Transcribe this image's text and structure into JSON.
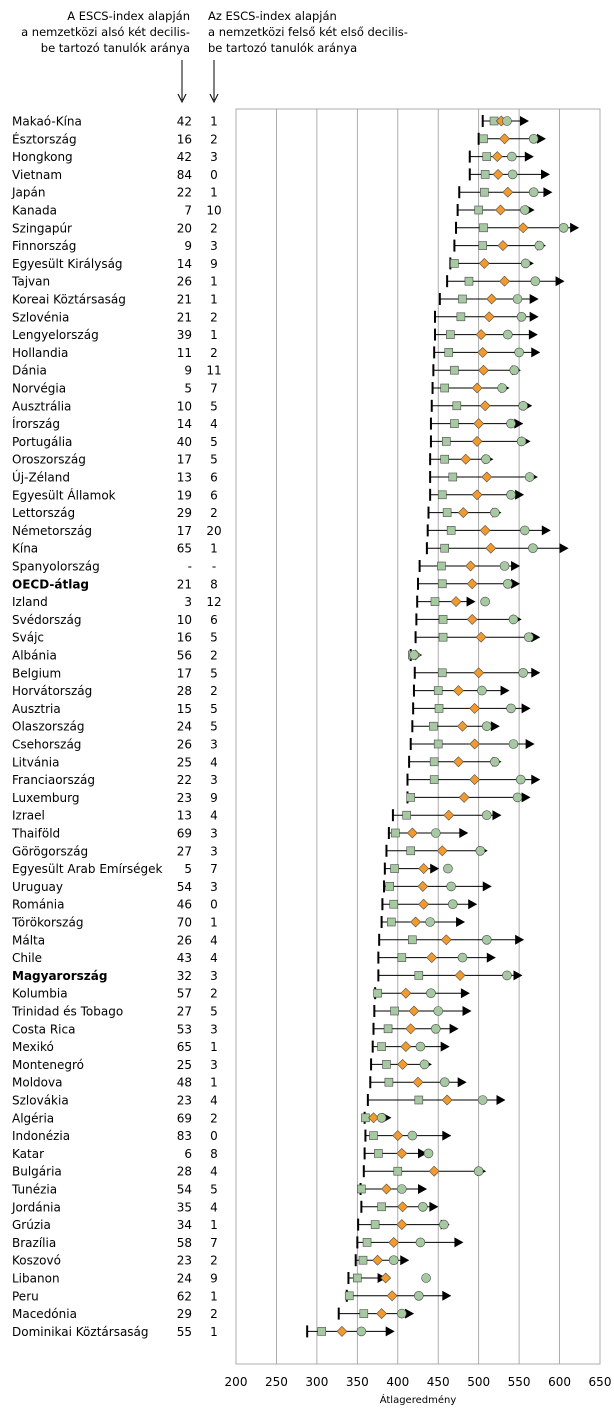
{
  "header": {
    "left": "A ESCS-index alapján\na nemzetközi alsó két decilis-\nbe tartozó tanulók aránya",
    "right": "Az ESCS-index alapján\na nemzetközi felső két első decilis-\nbe tartozó tanulók aránya"
  },
  "chart_data": {
    "type": "scatter",
    "xlabel": "Átlageredmény",
    "xlim": [
      200,
      650
    ],
    "xticks": [
      200,
      250,
      300,
      350,
      400,
      450,
      500,
      550,
      600,
      650
    ],
    "grid": true,
    "colors": {
      "square": "#a6c9a2",
      "diamond": "#f29a2e",
      "circle": "#a6c9a2",
      "edge": "#4a4a4a",
      "line": "#000000",
      "grid": "#999999"
    },
    "rows": [
      {
        "name": "Makaó-Kína",
        "bottom": "42",
        "top": "1",
        "start": 505,
        "sq": 519,
        "di": 528,
        "ci": 535,
        "end": 556,
        "bold": false
      },
      {
        "name": "Észtország",
        "bottom": "16",
        "top": "2",
        "start": 500,
        "sq": 506,
        "di": 532,
        "ci": 568,
        "end": 577,
        "bold": false
      },
      {
        "name": "Hongkong",
        "bottom": "42",
        "top": "3",
        "start": 489,
        "sq": 510,
        "di": 523,
        "ci": 541,
        "end": 562,
        "bold": false
      },
      {
        "name": "Vietnam",
        "bottom": "84",
        "top": "0",
        "start": 489,
        "sq": 508,
        "di": 524,
        "ci": 542,
        "end": 582,
        "bold": false
      },
      {
        "name": "Japán",
        "bottom": "22",
        "top": "1",
        "start": 476,
        "sq": 507,
        "di": 536,
        "ci": 568,
        "end": 585,
        "bold": false
      },
      {
        "name": "Kanada",
        "bottom": "7",
        "top": "10",
        "start": 474,
        "sq": 500,
        "di": 527,
        "ci": 557,
        "end": 563,
        "bold": false
      },
      {
        "name": "Szingapúr",
        "bottom": "20",
        "top": "2",
        "start": 472,
        "sq": 506,
        "di": 555,
        "ci": 605,
        "end": 618,
        "bold": false
      },
      {
        "name": "Finnország",
        "bottom": "9",
        "top": "3",
        "start": 470,
        "sq": 505,
        "di": 530,
        "ci": 575,
        "end": 577,
        "bold": false
      },
      {
        "name": "Egyesült Királyság",
        "bottom": "14",
        "top": "9",
        "start": 465,
        "sq": 470,
        "di": 507,
        "ci": 558,
        "end": 562,
        "bold": false
      },
      {
        "name": "Tajvan",
        "bottom": "26",
        "top": "1",
        "start": 461,
        "sq": 488,
        "di": 532,
        "ci": 570,
        "end": 600,
        "bold": false
      },
      {
        "name": "Koreai Köztársaság",
        "bottom": "21",
        "top": "1",
        "start": 452,
        "sq": 480,
        "di": 516,
        "ci": 548,
        "end": 568,
        "bold": false
      },
      {
        "name": "Szlovénia",
        "bottom": "21",
        "top": "2",
        "start": 446,
        "sq": 478,
        "di": 513,
        "ci": 553,
        "end": 568,
        "bold": false
      },
      {
        "name": "Lengyelország",
        "bottom": "39",
        "top": "1",
        "start": 446,
        "sq": 465,
        "di": 503,
        "ci": 536,
        "end": 567,
        "bold": false
      },
      {
        "name": "Hollandia",
        "bottom": "11",
        "top": "2",
        "start": 445,
        "sq": 463,
        "di": 505,
        "ci": 550,
        "end": 570,
        "bold": false
      },
      {
        "name": "Dánia",
        "bottom": "9",
        "top": "11",
        "start": 444,
        "sq": 470,
        "di": 506,
        "ci": 544,
        "end": 546,
        "bold": false
      },
      {
        "name": "Norvégia",
        "bottom": "5",
        "top": "7",
        "start": 443,
        "sq": 458,
        "di": 498,
        "ci": 529,
        "end": 532,
        "bold": false
      },
      {
        "name": "Ausztrália",
        "bottom": "10",
        "top": "5",
        "start": 442,
        "sq": 473,
        "di": 508,
        "ci": 555,
        "end": 560,
        "bold": false
      },
      {
        "name": "Írország",
        "bottom": "14",
        "top": "4",
        "start": 441,
        "sq": 470,
        "di": 500,
        "ci": 540,
        "end": 549,
        "bold": false
      },
      {
        "name": "Portugália",
        "bottom": "40",
        "top": "5",
        "start": 441,
        "sq": 460,
        "di": 498,
        "ci": 553,
        "end": 558,
        "bold": false
      },
      {
        "name": "Oroszország",
        "bottom": "17",
        "top": "5",
        "start": 440,
        "sq": 458,
        "di": 484,
        "ci": 509,
        "end": 512,
        "bold": false
      },
      {
        "name": "Új-Zéland",
        "bottom": "13",
        "top": "6",
        "start": 440,
        "sq": 468,
        "di": 510,
        "ci": 563,
        "end": 567,
        "bold": false
      },
      {
        "name": "Egyesült Államok",
        "bottom": "19",
        "top": "6",
        "start": 440,
        "sq": 455,
        "di": 498,
        "ci": 540,
        "end": 550,
        "bold": false
      },
      {
        "name": "Lettország",
        "bottom": "29",
        "top": "2",
        "start": 438,
        "sq": 461,
        "di": 481,
        "ci": 520,
        "end": 522,
        "bold": false
      },
      {
        "name": "Németország",
        "bottom": "17",
        "top": "20",
        "start": 437,
        "sq": 466,
        "di": 508,
        "ci": 557,
        "end": 583,
        "bold": false
      },
      {
        "name": "Kína",
        "bottom": "65",
        "top": "1",
        "start": 436,
        "sq": 458,
        "di": 515,
        "ci": 567,
        "end": 605,
        "bold": false
      },
      {
        "name": "Spanyolország",
        "bottom": "-",
        "top": "-",
        "start": 427,
        "sq": 454,
        "di": 490,
        "ci": 532,
        "end": 545,
        "bold": false
      },
      {
        "name": "OECD-átlag",
        "bottom": "21",
        "top": "8",
        "start": 425,
        "sq": 455,
        "di": 492,
        "ci": 536,
        "end": 545,
        "bold": true
      },
      {
        "name": "Izland",
        "bottom": "3",
        "top": "12",
        "start": 424,
        "sq": 446,
        "di": 472,
        "ci": 508,
        "end": 490,
        "bold": false
      },
      {
        "name": "Svédország",
        "bottom": "10",
        "top": "6",
        "start": 423,
        "sq": 456,
        "di": 492,
        "ci": 543,
        "end": 547,
        "bold": false
      },
      {
        "name": "Svájc",
        "bottom": "16",
        "top": "5",
        "start": 422,
        "sq": 456,
        "di": 503,
        "ci": 562,
        "end": 570,
        "bold": false
      },
      {
        "name": "Albánia",
        "bottom": "56",
        "top": "2",
        "start": 416,
        "sq": 418,
        "di": 422,
        "ci": 420,
        "end": 424,
        "bold": false
      },
      {
        "name": "Belgium",
        "bottom": "17",
        "top": "5",
        "start": 421,
        "sq": 455,
        "di": 500,
        "ci": 555,
        "end": 570,
        "bold": false
      },
      {
        "name": "Horvátország",
        "bottom": "28",
        "top": "2",
        "start": 420,
        "sq": 450,
        "di": 475,
        "ci": 504,
        "end": 532,
        "bold": false
      },
      {
        "name": "Ausztria",
        "bottom": "15",
        "top": "5",
        "start": 419,
        "sq": 451,
        "di": 495,
        "ci": 540,
        "end": 558,
        "bold": false
      },
      {
        "name": "Olaszország",
        "bottom": "24",
        "top": "5",
        "start": 418,
        "sq": 444,
        "di": 480,
        "ci": 510,
        "end": 520,
        "bold": false
      },
      {
        "name": "Csehország",
        "bottom": "26",
        "top": "3",
        "start": 416,
        "sq": 450,
        "di": 495,
        "ci": 543,
        "end": 563,
        "bold": false
      },
      {
        "name": "Litvánia",
        "bottom": "25",
        "top": "4",
        "start": 414,
        "sq": 445,
        "di": 475,
        "ci": 520,
        "end": 522,
        "bold": false
      },
      {
        "name": "Franciaország",
        "bottom": "22",
        "top": "3",
        "start": 412,
        "sq": 445,
        "di": 495,
        "ci": 552,
        "end": 570,
        "bold": false
      },
      {
        "name": "Luxemburg",
        "bottom": "23",
        "top": "9",
        "start": 412,
        "sq": 416,
        "di": 482,
        "ci": 548,
        "end": 558,
        "bold": false
      },
      {
        "name": "Izrael",
        "bottom": "13",
        "top": "4",
        "start": 394,
        "sq": 411,
        "di": 463,
        "ci": 510,
        "end": 522,
        "bold": false
      },
      {
        "name": "Thaiföld",
        "bottom": "69",
        "top": "3",
        "start": 389,
        "sq": 397,
        "di": 418,
        "ci": 447,
        "end": 481,
        "bold": false
      },
      {
        "name": "Görögország",
        "bottom": "27",
        "top": "3",
        "start": 386,
        "sq": 416,
        "di": 455,
        "ci": 502,
        "end": 505,
        "bold": false
      },
      {
        "name": "Egyesült Arab Emírségek",
        "bottom": "5",
        "top": "7",
        "start": 384,
        "sq": 396,
        "di": 432,
        "ci": 462,
        "end": 445,
        "bold": false
      },
      {
        "name": "Uruguay",
        "bottom": "54",
        "top": "3",
        "start": 383,
        "sq": 390,
        "di": 431,
        "ci": 466,
        "end": 510,
        "bold": false
      },
      {
        "name": "Románia",
        "bottom": "46",
        "top": "0",
        "start": 381,
        "sq": 395,
        "di": 432,
        "ci": 468,
        "end": 492,
        "bold": false
      },
      {
        "name": "Törökország",
        "bottom": "70",
        "top": "1",
        "start": 380,
        "sq": 392,
        "di": 422,
        "ci": 440,
        "end": 477,
        "bold": false
      },
      {
        "name": "Málta",
        "bottom": "26",
        "top": "4",
        "start": 377,
        "sq": 418,
        "di": 460,
        "ci": 510,
        "end": 550,
        "bold": false
      },
      {
        "name": "Chile",
        "bottom": "43",
        "top": "4",
        "start": 376,
        "sq": 405,
        "di": 442,
        "ci": 480,
        "end": 515,
        "bold": false
      },
      {
        "name": "Magyarország",
        "bottom": "32",
        "top": "3",
        "start": 376,
        "sq": 426,
        "di": 477,
        "ci": 535,
        "end": 548,
        "bold": true
      },
      {
        "name": "Kolumbia",
        "bottom": "57",
        "top": "2",
        "start": 372,
        "sq": 375,
        "di": 410,
        "ci": 441,
        "end": 483,
        "bold": false
      },
      {
        "name": "Trinidad és Tobago",
        "bottom": "27",
        "top": "5",
        "start": 371,
        "sq": 396,
        "di": 420,
        "ci": 450,
        "end": 485,
        "bold": false
      },
      {
        "name": "Costa Rica",
        "bottom": "53",
        "top": "3",
        "start": 370,
        "sq": 388,
        "di": 416,
        "ci": 447,
        "end": 469,
        "bold": false
      },
      {
        "name": "Mexikó",
        "bottom": "65",
        "top": "1",
        "start": 369,
        "sq": 380,
        "di": 410,
        "ci": 428,
        "end": 458,
        "bold": false
      },
      {
        "name": "Montenegró",
        "bottom": "25",
        "top": "3",
        "start": 367,
        "sq": 386,
        "di": 406,
        "ci": 433,
        "end": 436,
        "bold": false
      },
      {
        "name": "Moldova",
        "bottom": "48",
        "top": "1",
        "start": 366,
        "sq": 389,
        "di": 425,
        "ci": 458,
        "end": 479,
        "bold": false
      },
      {
        "name": "Szlovákia",
        "bottom": "23",
        "top": "4",
        "start": 363,
        "sq": 426,
        "di": 461,
        "ci": 505,
        "end": 527,
        "bold": false
      },
      {
        "name": "Algéria",
        "bottom": "69",
        "top": "2",
        "start": 359,
        "sq": 360,
        "di": 370,
        "ci": 380,
        "end": 386,
        "bold": false
      },
      {
        "name": "Indonézia",
        "bottom": "83",
        "top": "0",
        "start": 360,
        "sq": 370,
        "di": 400,
        "ci": 418,
        "end": 460,
        "bold": false
      },
      {
        "name": "Katar",
        "bottom": "6",
        "top": "8",
        "start": 359,
        "sq": 376,
        "di": 405,
        "ci": 438,
        "end": 430,
        "bold": false
      },
      {
        "name": "Bulgária",
        "bottom": "28",
        "top": "4",
        "start": 358,
        "sq": 400,
        "di": 445,
        "ci": 500,
        "end": 503,
        "bold": false
      },
      {
        "name": "Tunézia",
        "bottom": "54",
        "top": "5",
        "start": 354,
        "sq": 355,
        "di": 386,
        "ci": 405,
        "end": 430,
        "bold": false
      },
      {
        "name": "Jordánia",
        "bottom": "35",
        "top": "4",
        "start": 355,
        "sq": 380,
        "di": 406,
        "ci": 431,
        "end": 444,
        "bold": false
      },
      {
        "name": "Grúzia",
        "bottom": "34",
        "top": "1",
        "start": 351,
        "sq": 372,
        "di": 405,
        "ci": 457,
        "end": 458,
        "bold": false
      },
      {
        "name": "Brazília",
        "bottom": "58",
        "top": "7",
        "start": 350,
        "sq": 362,
        "di": 395,
        "ci": 428,
        "end": 475,
        "bold": false
      },
      {
        "name": "Koszovó",
        "bottom": "23",
        "top": "2",
        "start": 348,
        "sq": 357,
        "di": 375,
        "ci": 395,
        "end": 408,
        "bold": false
      },
      {
        "name": "Libanon",
        "bottom": "24",
        "top": "9",
        "start": 339,
        "sq": 350,
        "di": 385,
        "ci": 435,
        "end": 380,
        "bold": false
      },
      {
        "name": "Peru",
        "bottom": "62",
        "top": "1",
        "start": 337,
        "sq": 340,
        "di": 393,
        "ci": 426,
        "end": 460,
        "bold": false
      },
      {
        "name": "Macedónia",
        "bottom": "29",
        "top": "2",
        "start": 327,
        "sq": 358,
        "di": 380,
        "ci": 405,
        "end": 414,
        "bold": false
      },
      {
        "name": "Dominikai Köztársaság",
        "bottom": "55",
        "top": "1",
        "start": 288,
        "sq": 306,
        "di": 331,
        "ci": 355,
        "end": 390,
        "bold": false
      }
    ]
  }
}
